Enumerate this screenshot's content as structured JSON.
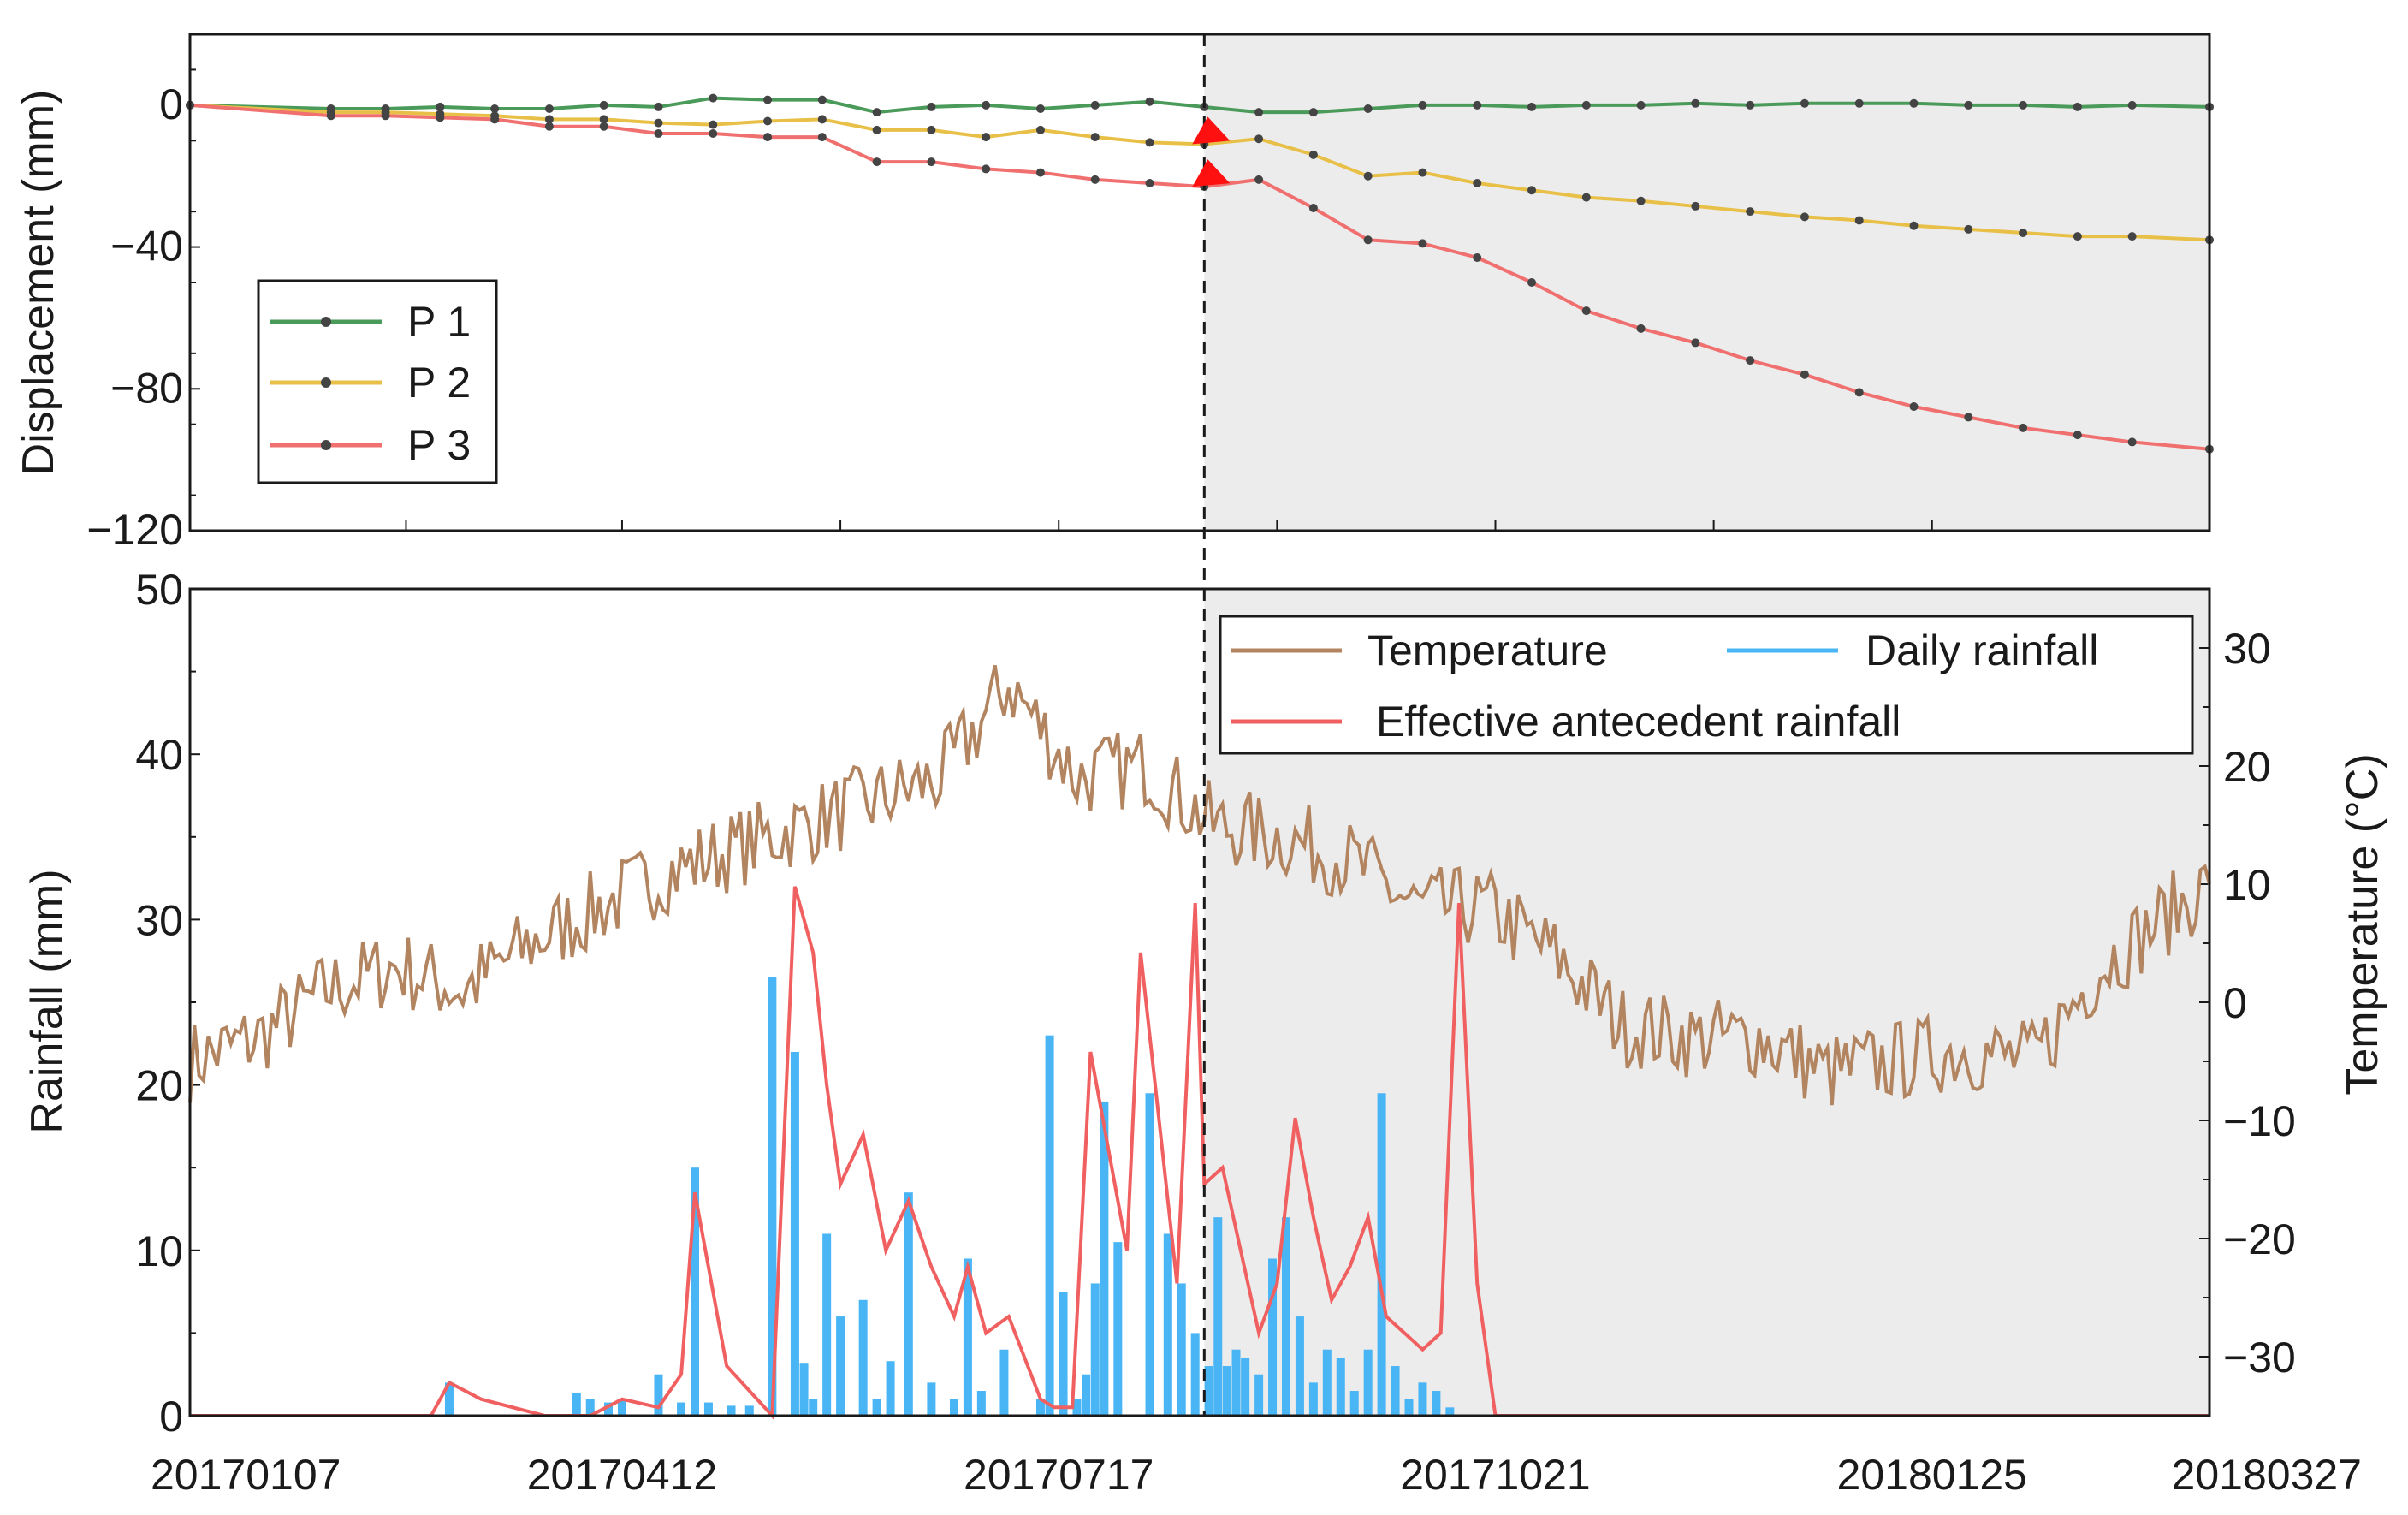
{
  "chart_data": [
    {
      "type": "line",
      "panel": "top",
      "ylabel": "Displacement (mm)",
      "ylim": [
        -120,
        20
      ],
      "yticks": [
        0,
        -40,
        -80,
        -120
      ],
      "ytick_labels": [
        "0",
        "−40",
        "−80",
        "−120"
      ],
      "x": [
        "20170107",
        "20170207",
        "20170219",
        "20170303",
        "20170315",
        "20170327",
        "20170408",
        "20170420",
        "20170502",
        "20170514",
        "20170526",
        "20170607",
        "20170619",
        "20170701",
        "20170713",
        "20170725",
        "20170806",
        "20170818",
        "20170830",
        "20170911",
        "20170923",
        "20171005",
        "20171017",
        "20171029",
        "20171110",
        "20171122",
        "20171204",
        "20171216",
        "20171228",
        "20180109",
        "20180121",
        "20180202",
        "20180214",
        "20180226",
        "20180310",
        "20180327"
      ],
      "series": [
        {
          "name": "P 1",
          "color": "#4a9a5a",
          "values": [
            0,
            -1,
            -1,
            -0.5,
            -1,
            -1,
            0,
            -0.5,
            2,
            1.5,
            1.5,
            -2,
            -0.5,
            0,
            -1,
            0,
            1,
            -0.5,
            -2,
            -2,
            -1,
            0,
            0,
            -0.5,
            0,
            0,
            0.5,
            0,
            0.5,
            0.5,
            0.5,
            0,
            0,
            -0.5,
            0,
            -0.5
          ]
        },
        {
          "name": "P 2",
          "color": "#e8c048",
          "values": [
            0,
            -2,
            -2,
            -2.5,
            -3,
            -4,
            -4,
            -5,
            -5.5,
            -4.5,
            -4,
            -7,
            -7,
            -9,
            -7,
            -9,
            -10.5,
            -11,
            -9.5,
            -14,
            -20,
            -19,
            -22,
            -24,
            -26,
            -27,
            -28.5,
            -30,
            -31.5,
            -32.5,
            -34,
            -35,
            -36,
            -37,
            -37,
            -38
          ]
        },
        {
          "name": "P 3",
          "color": "#f07070",
          "values": [
            0,
            -3,
            -3,
            -3.5,
            -4,
            -6,
            -6,
            -8,
            -8,
            -9,
            -9,
            -16,
            -16,
            -18,
            -19,
            -21,
            -22,
            -23,
            -21,
            -29,
            -38,
            -39,
            -43,
            -50,
            -58,
            -63,
            -67,
            -72,
            -76,
            -81,
            -85,
            -88,
            -91,
            -93,
            -95,
            -97
          ]
        }
      ],
      "legend": {
        "position": "lower-left",
        "entries": [
          "P 1",
          "P 2",
          "P 3"
        ]
      },
      "shaded_region": {
        "from": "20170818",
        "to": "20180327",
        "color": "#ececec"
      }
    },
    {
      "type": "line",
      "panel": "bottom",
      "ylabel": "Rainfall (mm)",
      "ylim": [
        0,
        50
      ],
      "yticks": [
        0,
        10,
        20,
        30,
        40,
        50
      ],
      "y2label": "Temperature (°C)",
      "y2lim": [
        -35,
        35
      ],
      "y2ticks": [
        30,
        20,
        10,
        0,
        -10,
        -20,
        -30
      ],
      "y2tick_labels": [
        "30",
        "20",
        "10",
        "0",
        "−10",
        "−20",
        "−30"
      ],
      "xticks": [
        "20170107",
        "20170412",
        "20170717",
        "20171021",
        "20180125",
        "20180327"
      ],
      "legend": {
        "position": "top-right",
        "entries": [
          "Temperature",
          "Daily rainfall",
          "Effective antecedent rainfall"
        ]
      },
      "series": [
        {
          "name": "Temperature",
          "color": "#b28560",
          "axis": "right",
          "x": [
            "20170107",
            "20170122",
            "20170206",
            "20170221",
            "20170308",
            "20170323",
            "20170407",
            "20170422",
            "20170507",
            "20170522",
            "20170606",
            "20170621",
            "20170706",
            "20170721",
            "20170805",
            "20170820",
            "20170904",
            "20170919",
            "20171004",
            "20171019",
            "20171103",
            "20171118",
            "20171203",
            "20171218",
            "20180102",
            "20180117",
            "20180201",
            "20180216",
            "20180303",
            "20180327"
          ],
          "values": [
            -5,
            -3,
            1,
            3,
            1,
            5,
            8,
            11,
            13,
            15,
            17,
            19,
            27,
            19,
            20,
            15,
            14,
            12,
            8,
            8,
            4,
            -2,
            -3,
            -3,
            -6,
            -5,
            -4,
            -5,
            3,
            10
          ]
        },
        {
          "name": "Daily rainfall",
          "color": "#49b5f5",
          "axis": "left",
          "kind": "bar",
          "x": [
            "20170305",
            "20170402",
            "20170405",
            "20170409",
            "20170412",
            "20170420",
            "20170425",
            "20170428",
            "20170501",
            "20170506",
            "20170510",
            "20170515",
            "20170520",
            "20170522",
            "20170524",
            "20170527",
            "20170530",
            "20170604",
            "20170607",
            "20170610",
            "20170614",
            "20170619",
            "20170624",
            "20170627",
            "20170630",
            "20170705",
            "20170713",
            "20170715",
            "20170718",
            "20170721",
            "20170723",
            "20170725",
            "20170727",
            "20170730",
            "20170806",
            "20170810",
            "20170813",
            "20170816",
            "20170819",
            "20170821",
            "20170823",
            "20170825",
            "20170827",
            "20170830",
            "20170902",
            "20170905",
            "20170908",
            "20170911",
            "20170914",
            "20170917",
            "20170920",
            "20170923",
            "20170926",
            "20170929",
            "20171002",
            "20171005",
            "20171008",
            "20171011"
          ],
          "values": [
            2,
            1.4,
            1,
            0.8,
            1,
            2.5,
            0.8,
            15,
            0.8,
            0.6,
            0.6,
            26.5,
            22,
            3.2,
            1,
            11,
            6,
            7,
            1,
            3.3,
            13.5,
            2,
            1,
            9.5,
            1.5,
            4,
            1,
            23,
            7.5,
            1,
            2.5,
            8,
            19,
            10.5,
            19.5,
            11,
            8,
            5,
            3,
            12,
            3,
            4,
            3.5,
            2.5,
            9.5,
            12,
            6,
            2,
            4,
            3.5,
            1.5,
            4,
            19.5,
            3,
            1,
            2,
            1.5,
            0.5
          ]
        },
        {
          "name": "Effective antecedent rainfall",
          "color": "#f06060",
          "axis": "left",
          "x": [
            "20170107",
            "20170301",
            "20170305",
            "20170312",
            "20170326",
            "20170405",
            "20170412",
            "20170420",
            "20170425",
            "20170428",
            "20170501",
            "20170505",
            "20170515",
            "20170520",
            "20170524",
            "20170527",
            "20170530",
            "20170604",
            "20170609",
            "20170614",
            "20170619",
            "20170624",
            "20170627",
            "20170701",
            "20170706",
            "20170713",
            "20170716",
            "20170720",
            "20170724",
            "20170728",
            "20170801",
            "20170804",
            "20170808",
            "20170812",
            "20170816",
            "20170818",
            "20170822",
            "20170826",
            "20170830",
            "20170903",
            "20170907",
            "20170911",
            "20170915",
            "20170919",
            "20170923",
            "20170927",
            "20171001",
            "20171005",
            "20171009",
            "20171013",
            "20171017",
            "20171021",
            "20180327"
          ],
          "values": [
            0,
            0,
            2,
            1,
            0,
            0,
            1,
            0.5,
            2.5,
            13.5,
            9,
            3,
            0,
            32,
            28,
            20,
            14,
            17,
            10,
            13,
            9,
            6,
            9,
            5,
            6,
            1,
            0.5,
            0.5,
            22,
            16,
            10,
            28,
            18,
            8,
            31,
            14,
            15,
            10,
            5,
            8,
            18,
            12,
            7,
            9,
            12,
            6,
            5,
            4,
            5,
            31,
            8,
            0,
            0
          ]
        }
      ],
      "shaded_region": {
        "from": "20170818",
        "to": "20180327",
        "color": "#ececec"
      }
    }
  ]
}
